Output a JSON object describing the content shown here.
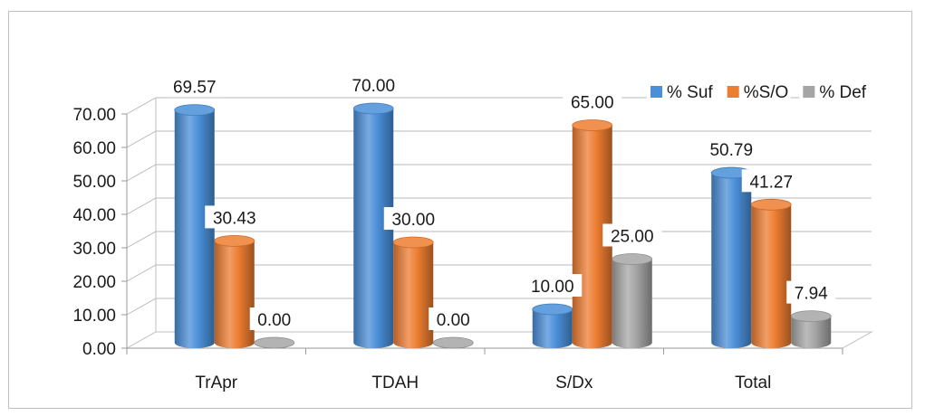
{
  "chart_data": {
    "type": "bar",
    "categories": [
      "TrApr",
      "TDAH",
      "S/Dx",
      "Total"
    ],
    "series": [
      {
        "name": "% Suf",
        "values": [
          69.57,
          70.0,
          10.0,
          50.79
        ],
        "color": "#4a8fd8"
      },
      {
        "name": "%S/O",
        "values": [
          30.43,
          30.0,
          65.0,
          41.27
        ],
        "color": "#ed7d31"
      },
      {
        "name": "% Def",
        "values": [
          0.0,
          0.0,
          25.0,
          7.94
        ],
        "color": "#a5a5a5"
      }
    ],
    "data_labels": [
      [
        "69.57",
        "30.43",
        "0.00"
      ],
      [
        "70.00",
        "30.00",
        "0.00"
      ],
      [
        "10.00",
        "65.00",
        "25.00"
      ],
      [
        "50.79",
        "41.27",
        "7.94"
      ]
    ],
    "y_ticks": [
      "0.00",
      "10.00",
      "20.00",
      "30.00",
      "40.00",
      "50.00",
      "60.00",
      "70.00"
    ],
    "ylim": [
      0,
      70
    ],
    "grid": true,
    "legend_position": "top-right",
    "style": "3d-cylinder",
    "title": "",
    "xlabel": "",
    "ylabel": ""
  }
}
